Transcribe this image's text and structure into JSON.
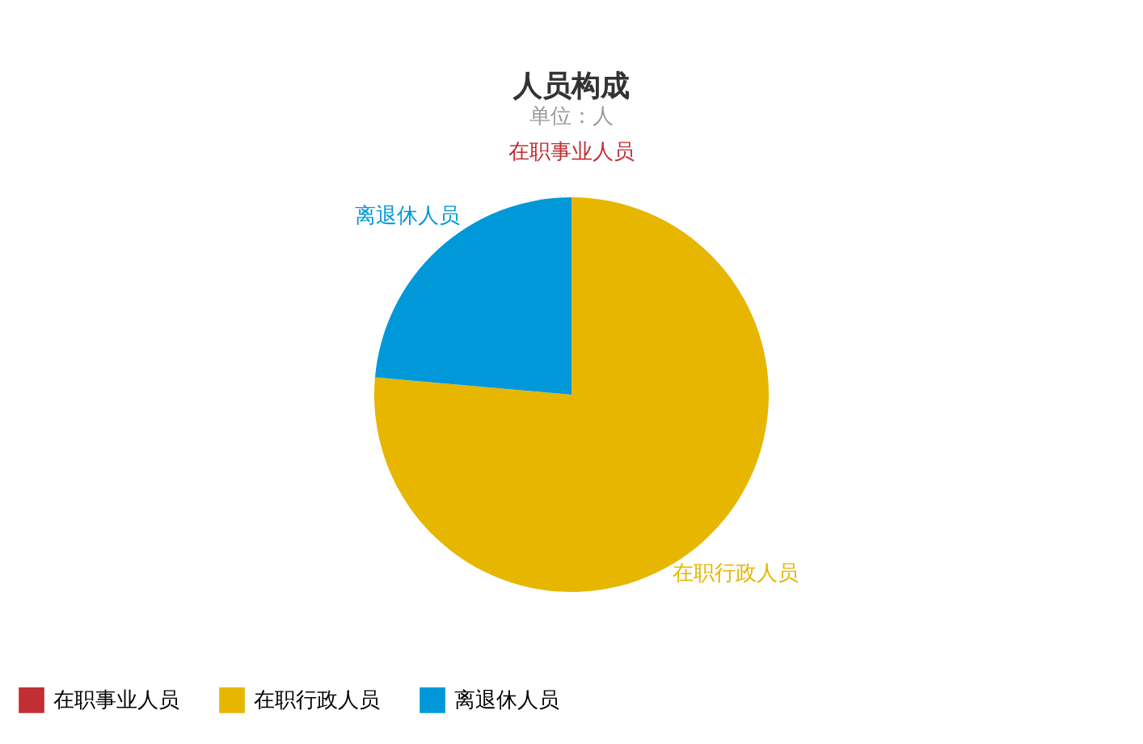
{
  "chart_data": {
    "type": "pie",
    "title": "人员构成",
    "subtitle": "单位：人",
    "categories": [
      "在职事业人员",
      "在职行政人员",
      "离退休人员"
    ],
    "values": [
      0,
      76.4,
      23.6
    ],
    "colors": [
      "#c12e34",
      "#e6b600",
      "#0098d9"
    ],
    "legend": "bottom"
  }
}
